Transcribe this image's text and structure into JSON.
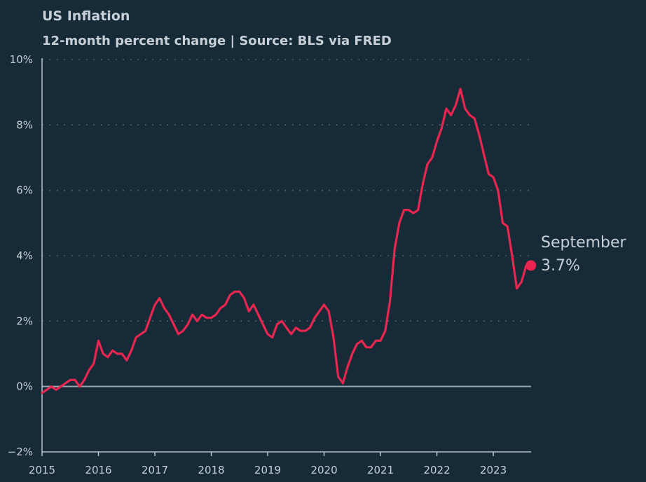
{
  "chart_data": {
    "type": "line",
    "title": "US Inflation",
    "subtitle": "12-month percent change | Source: BLS via FRED",
    "xlabel": "",
    "ylabel": "",
    "ylim": [
      -2,
      10
    ],
    "yticks": [
      10,
      8,
      6,
      4,
      2,
      0,
      -2
    ],
    "ytick_labels": [
      "10%",
      "8%",
      "6%",
      "4%",
      "2%",
      "0%",
      "−2%"
    ],
    "xlim": [
      2015.0,
      2023.67
    ],
    "xticks": [
      2015,
      2016,
      2017,
      2018,
      2019,
      2020,
      2021,
      2022,
      2023
    ],
    "xtick_labels": [
      "2015",
      "2016",
      "2017",
      "2018",
      "2019",
      "2020",
      "2021",
      "2022",
      "2023"
    ],
    "grid": "horizontal dotted",
    "colors": {
      "background": "#162a38",
      "line": "#e8264f",
      "grid": "#6b7c88",
      "zero_line": "#9aa7b0",
      "text": "#c7d0d6"
    },
    "annotation": {
      "month": "September",
      "value_label": "3.7%",
      "value": 3.7
    },
    "series": [
      {
        "x_start": "2015-01",
        "frequency": "monthly",
        "values": [
          -0.2,
          -0.1,
          -0.0,
          -0.1,
          0.0,
          0.1,
          0.2,
          0.2,
          -0.0,
          0.2,
          0.5,
          0.7,
          1.4,
          1.0,
          0.9,
          1.1,
          1.0,
          1.0,
          0.8,
          1.1,
          1.5,
          1.6,
          1.7,
          2.1,
          2.5,
          2.7,
          2.4,
          2.2,
          1.9,
          1.6,
          1.7,
          1.9,
          2.2,
          2.0,
          2.2,
          2.1,
          2.1,
          2.2,
          2.4,
          2.5,
          2.8,
          2.9,
          2.9,
          2.7,
          2.3,
          2.5,
          2.2,
          1.9,
          1.6,
          1.5,
          1.9,
          2.0,
          1.8,
          1.6,
          1.8,
          1.7,
          1.7,
          1.8,
          2.1,
          2.3,
          2.5,
          2.3,
          1.5,
          0.3,
          0.1,
          0.6,
          1.0,
          1.3,
          1.4,
          1.2,
          1.2,
          1.4,
          1.4,
          1.7,
          2.6,
          4.2,
          5.0,
          5.4,
          5.4,
          5.3,
          5.4,
          6.2,
          6.8,
          7.0,
          7.5,
          7.9,
          8.5,
          8.3,
          8.6,
          9.1,
          8.5,
          8.3,
          8.2,
          7.7,
          7.1,
          6.5,
          6.4,
          6.0,
          5.0,
          4.9,
          4.0,
          3.0,
          3.2,
          3.7,
          3.7
        ]
      }
    ]
  }
}
